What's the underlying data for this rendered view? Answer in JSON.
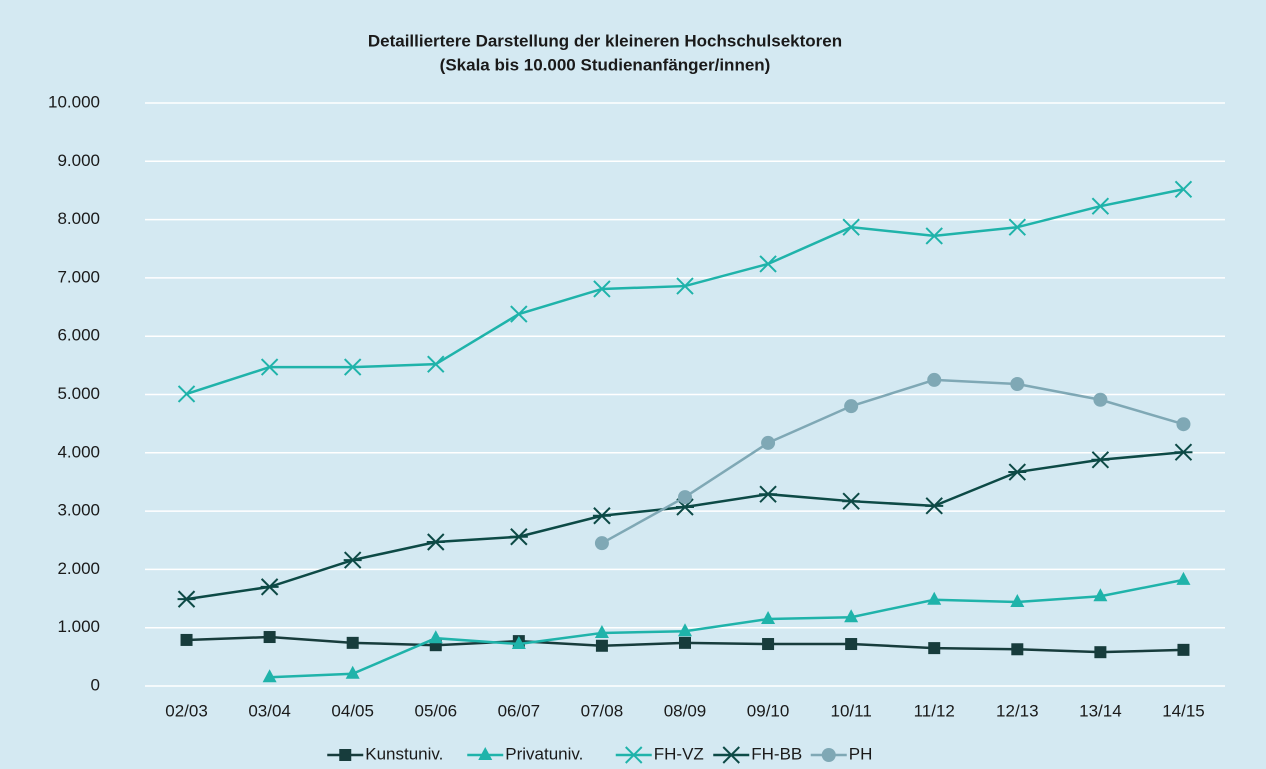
{
  "chart_data": {
    "type": "line",
    "title": "Detailliertere Darstellung der kleineren Hochschulsektoren",
    "subtitle": "(Skala bis 10.000 Studienanfänger/innen)",
    "categories": [
      "02/03",
      "03/04",
      "04/05",
      "05/06",
      "06/07",
      "07/08",
      "08/09",
      "09/10",
      "10/11",
      "11/12",
      "12/13",
      "13/14",
      "14/15"
    ],
    "series": [
      {
        "name": "Kunstuniv.",
        "color": "#173c3c",
        "marker": "square",
        "values": [
          790,
          840,
          740,
          700,
          770,
          690,
          740,
          720,
          720,
          650,
          630,
          580,
          620
        ]
      },
      {
        "name": "Privatuniv.",
        "color": "#1fb3aa",
        "marker": "triangle",
        "values": [
          null,
          150,
          210,
          820,
          720,
          910,
          940,
          1150,
          1180,
          1480,
          1440,
          1540,
          1820
        ]
      },
      {
        "name": "FH-VZ",
        "color": "#1fb3aa",
        "marker": "x",
        "values": [
          5010,
          5470,
          5470,
          5520,
          6380,
          6810,
          6860,
          7240,
          7870,
          7720,
          7870,
          8230,
          8520
        ]
      },
      {
        "name": "FH-BB",
        "color": "#0d4a46",
        "marker": "star",
        "values": [
          1490,
          1700,
          2160,
          2470,
          2560,
          2920,
          3070,
          3290,
          3170,
          3090,
          3670,
          3880,
          4010
        ]
      },
      {
        "name": "PH",
        "color": "#7fa8b5",
        "marker": "circle",
        "values": [
          null,
          null,
          null,
          null,
          null,
          2450,
          3240,
          4170,
          4800,
          5250,
          5180,
          4910,
          4490
        ]
      }
    ],
    "ylim": [
      0,
      10000
    ],
    "yticks": [
      0,
      {
        "value": 1000,
        "label": "1.000"
      },
      {
        "value": 2000,
        "label": "2.000"
      },
      {
        "value": 3000,
        "label": "3.000"
      },
      {
        "value": 4000,
        "label": "4.000"
      },
      {
        "value": 5000,
        "label": "5.000"
      },
      {
        "value": 6000,
        "label": "6.000"
      },
      {
        "value": 7000,
        "label": "7.000"
      },
      {
        "value": 8000,
        "label": "8.000"
      },
      {
        "value": 9000,
        "label": "9.000"
      },
      {
        "value": 10000,
        "label": "10.000"
      }
    ],
    "grid": true,
    "legend": "bottom"
  }
}
